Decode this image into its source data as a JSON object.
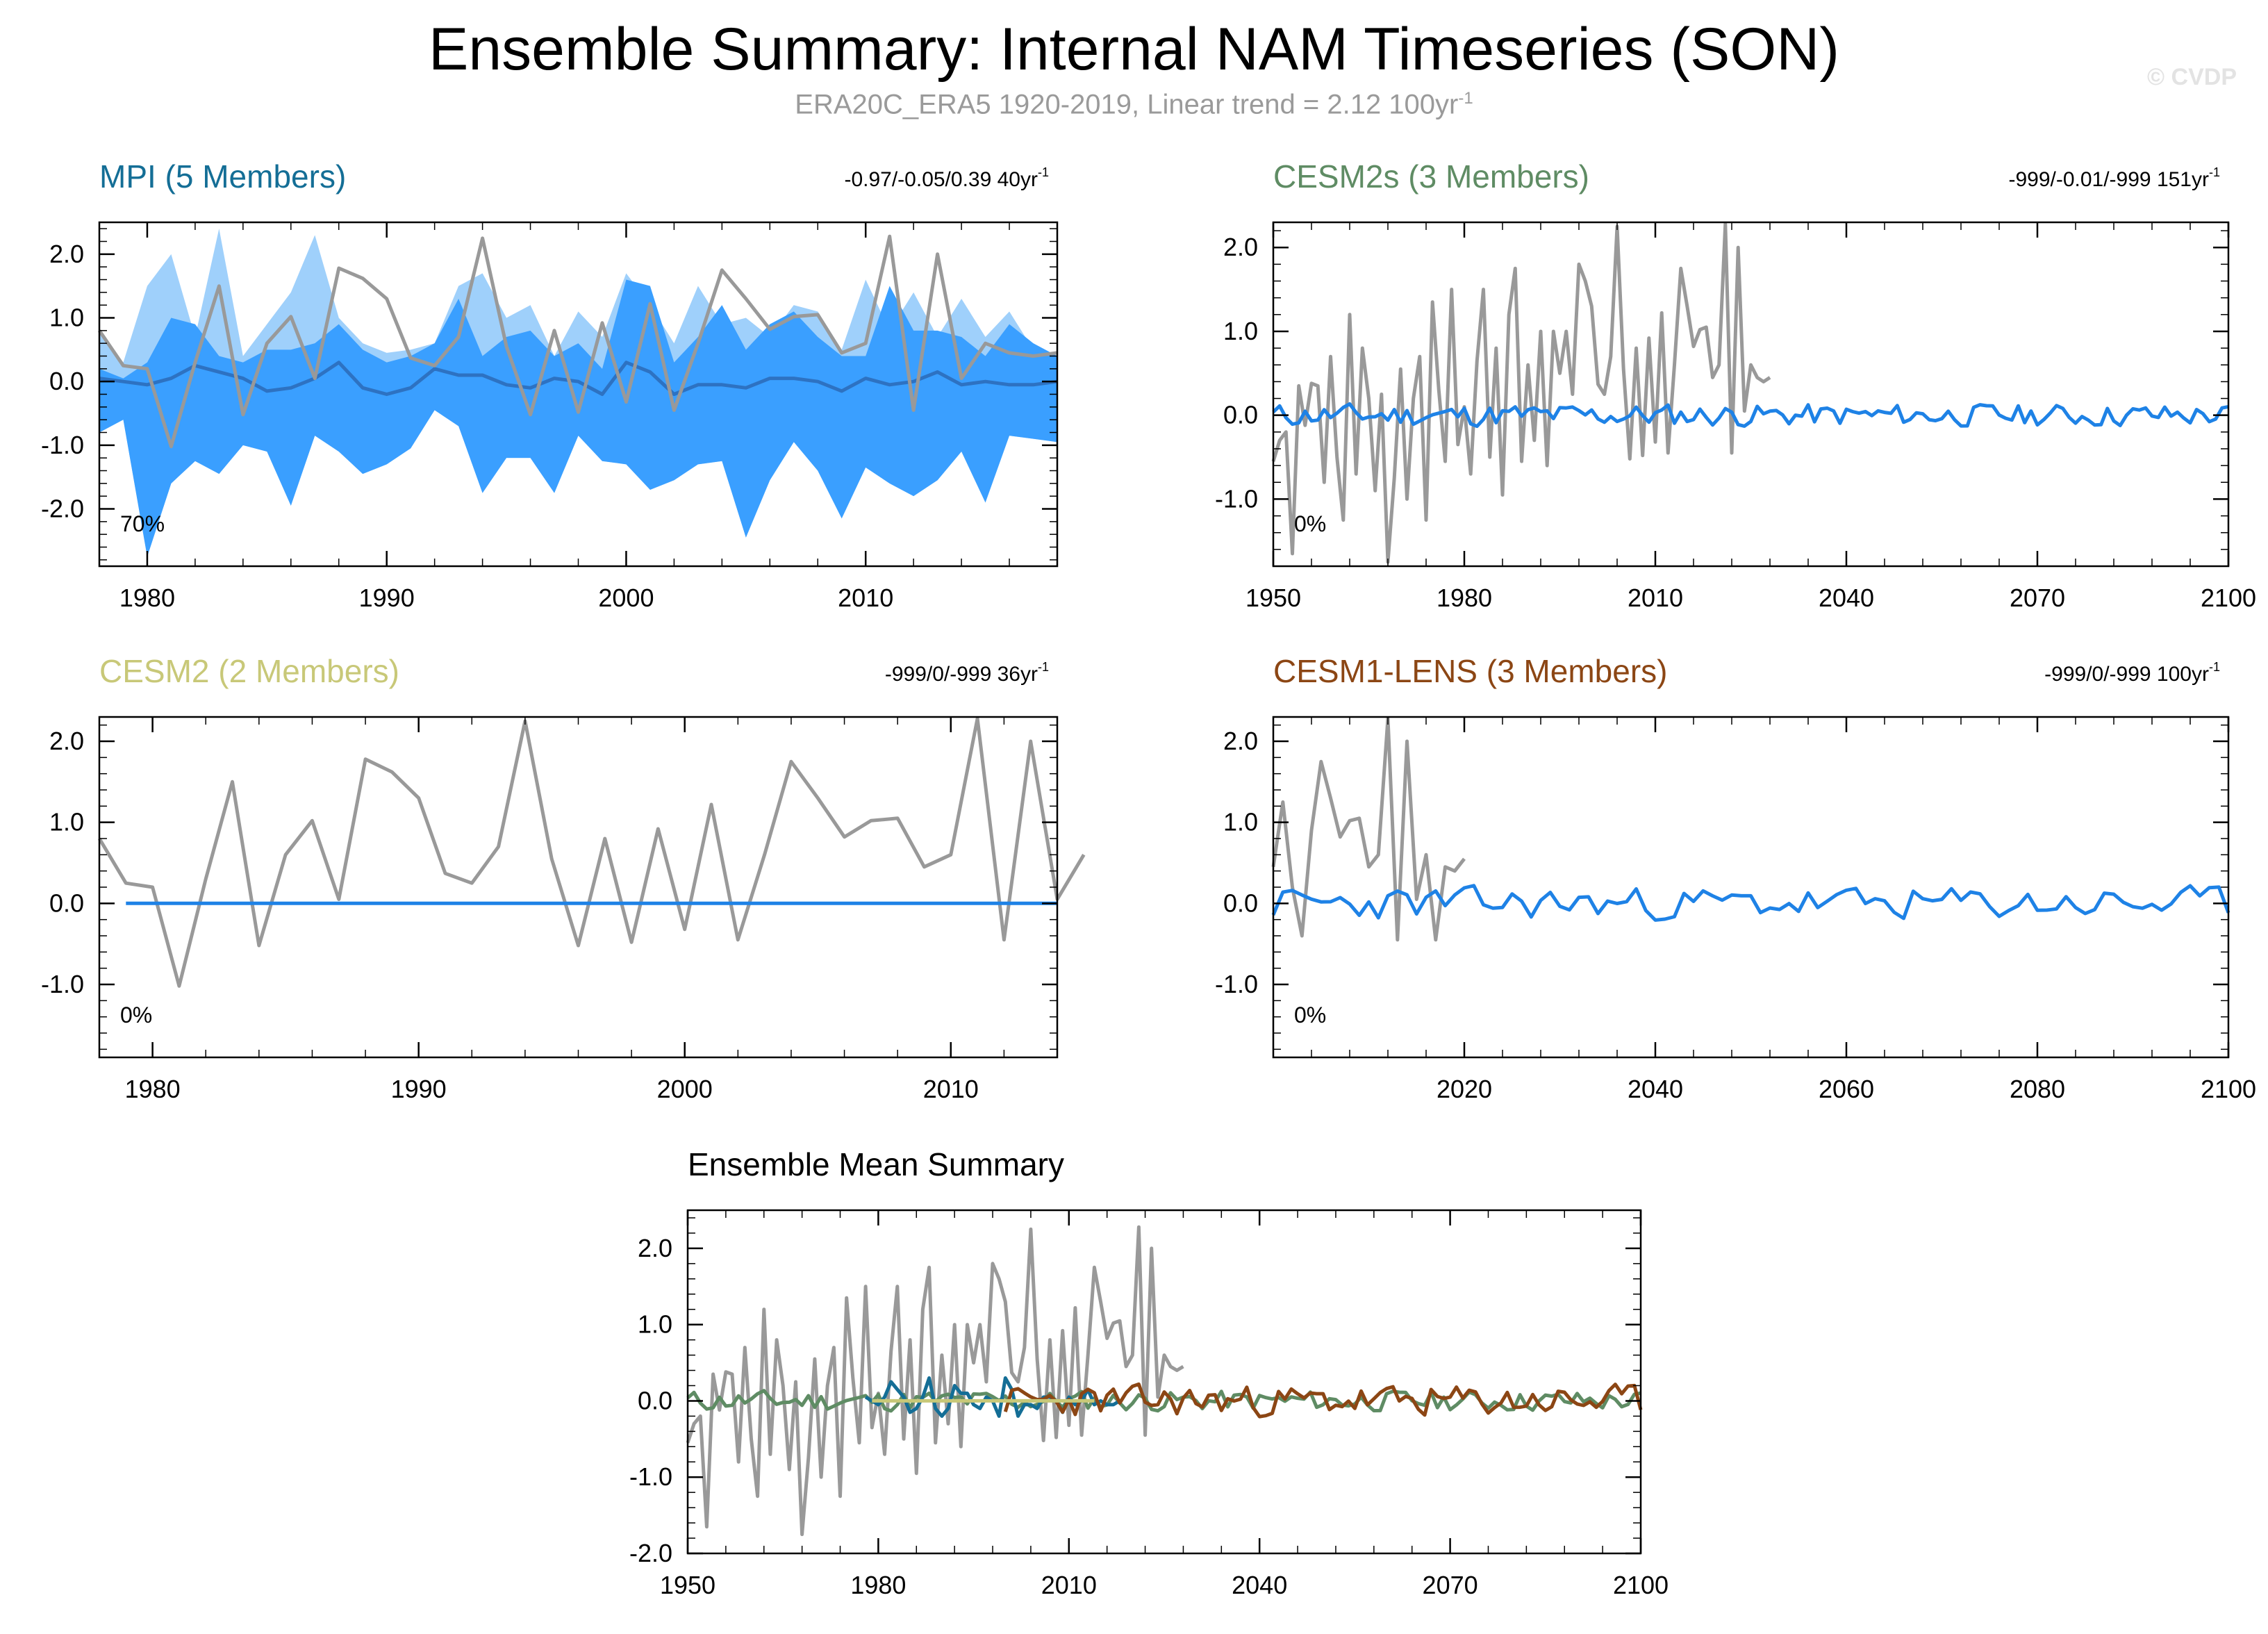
{
  "page": {
    "title": "Ensemble Summary: Internal NAM Timeseries (SON)",
    "subtitle": "ERA20C_ERA5 1920-2019, Linear trend = 2.12 100yr",
    "subtitle_sup": "-1",
    "watermark": "© CVDP"
  },
  "colors": {
    "obs": "#999999",
    "mean_line": "#1e82e6",
    "spread_outer": "#9fd0fb",
    "spread_inner": "#3a9fff",
    "mpi_dark": "#2d72c2",
    "mpi": "#146e96",
    "cesm2s": "#5f8c64",
    "cesm2": "#c8c878",
    "cesm1": "#8c4614"
  },
  "panels": [
    {
      "title": "MPI (5 Members)",
      "stats": "-0.97/-0.05/0.39 40yr",
      "stats_sup": "-1",
      "percent": "70%",
      "xticks": [
        "1980",
        "1990",
        "2000",
        "2010"
      ],
      "yticks": [
        "2.0",
        "1.0",
        "0.0",
        "-1.0",
        "-2.0"
      ]
    },
    {
      "title": "CESM2s (3 Members)",
      "stats": "-999/-0.01/-999 151yr",
      "stats_sup": "-1",
      "percent": "0%",
      "xticks": [
        "1950",
        "1980",
        "2010",
        "2040",
        "2070",
        "2100"
      ],
      "yticks": [
        "2.0",
        "1.0",
        "0.0",
        "-1.0"
      ]
    },
    {
      "title": "CESM2 (2 Members)",
      "stats": "-999/0/-999 36yr",
      "stats_sup": "-1",
      "percent": "0%",
      "xticks": [
        "1980",
        "1990",
        "2000",
        "2010"
      ],
      "yticks": [
        "2.0",
        "1.0",
        "0.0",
        "-1.0"
      ]
    },
    {
      "title": "CESM1-LENS (3 Members)",
      "stats": "-999/0/-999 100yr",
      "stats_sup": "-1",
      "percent": "0%",
      "xticks": [
        "2020",
        "2040",
        "2060",
        "2080",
        "2100"
      ],
      "yticks": [
        "2.0",
        "1.0",
        "0.0",
        "-1.0"
      ]
    },
    {
      "title": "Ensemble Mean Summary",
      "stats": "",
      "stats_sup": "",
      "percent": "",
      "xticks": [
        "1950",
        "1980",
        "2010",
        "2040",
        "2070",
        "2100"
      ],
      "yticks": [
        "2.0",
        "1.0",
        "0.0",
        "-1.0",
        "-2.0"
      ]
    }
  ],
  "chart_data": [
    {
      "type": "line",
      "title": "MPI (5 Members)",
      "xlim": [
        1978,
        2018
      ],
      "ylim": [
        -2.9,
        2.5
      ],
      "x_start": 1978,
      "obs": [
        0.8,
        0.25,
        0.2,
        -1.02,
        0.3,
        1.5,
        -0.52,
        0.6,
        1.02,
        0.05,
        1.78,
        1.62,
        1.3,
        0.37,
        0.25,
        0.7,
        2.25,
        0.55,
        -0.52,
        0.8,
        -0.48,
        0.92,
        -0.32,
        1.22,
        -0.45,
        0.6,
        1.75,
        1.3,
        0.82,
        1.02,
        1.05,
        0.45,
        0.6,
        2.28,
        -0.45,
        2.0,
        0.05,
        0.6,
        0.45,
        0.4,
        0.45
      ],
      "ens_mean": [
        0.05,
        0.0,
        -0.05,
        0.05,
        0.25,
        0.15,
        0.05,
        -0.15,
        -0.1,
        0.05,
        0.3,
        -0.1,
        -0.2,
        -0.1,
        0.2,
        0.1,
        0.1,
        -0.05,
        -0.1,
        0.05,
        0.0,
        -0.2,
        0.3,
        0.15,
        -0.2,
        -0.05,
        -0.05,
        -0.1,
        0.05,
        0.05,
        0.0,
        -0.15,
        0.05,
        -0.05,
        0.0,
        0.15,
        -0.05,
        0.0,
        -0.05,
        -0.05,
        0.0
      ],
      "inner_max": [
        0.2,
        0.05,
        0.3,
        1.0,
        0.9,
        0.4,
        0.3,
        0.5,
        0.5,
        0.6,
        0.9,
        0.5,
        0.3,
        0.4,
        0.6,
        1.3,
        0.4,
        0.7,
        0.8,
        0.4,
        0.6,
        0.2,
        1.6,
        1.5,
        0.3,
        0.7,
        1.2,
        0.5,
        0.9,
        1.1,
        0.7,
        0.4,
        0.4,
        1.5,
        0.8,
        0.8,
        0.7,
        0.4,
        0.9,
        0.6,
        0.4
      ],
      "inner_min": [
        -0.8,
        -0.6,
        -2.75,
        -1.6,
        -1.25,
        -1.45,
        -1.0,
        -1.1,
        -1.95,
        -0.85,
        -1.1,
        -1.45,
        -1.3,
        -1.05,
        -0.45,
        -0.7,
        -1.75,
        -1.2,
        -1.2,
        -1.75,
        -0.85,
        -1.25,
        -1.3,
        -1.7,
        -1.55,
        -1.3,
        -1.25,
        -2.45,
        -1.55,
        -0.95,
        -1.4,
        -2.15,
        -1.35,
        -1.6,
        -1.8,
        -1.55,
        -1.1,
        -1.9,
        -0.85,
        -0.9,
        -0.95
      ],
      "outer_max": [
        0.8,
        0.3,
        1.5,
        2.0,
        0.7,
        2.4,
        0.4,
        0.9,
        1.4,
        2.3,
        1.0,
        0.6,
        0.45,
        0.5,
        0.6,
        1.5,
        1.7,
        1.0,
        1.2,
        0.4,
        1.1,
        0.7,
        1.7,
        1.2,
        0.6,
        1.5,
        0.9,
        1.0,
        0.7,
        1.2,
        1.1,
        0.5,
        1.6,
        0.8,
        1.4,
        0.7,
        1.3,
        0.7,
        1.1,
        0.5,
        0.4
      ],
      "label_percent": "70%"
    },
    {
      "type": "line",
      "title": "CESM2s (3 Members)",
      "xlim": [
        1950,
        2100
      ],
      "ylim": [
        -1.8,
        2.3
      ],
      "x_start": 1950,
      "obs": [
        -0.55,
        -0.3,
        -0.2,
        -1.65,
        0.35,
        -0.12,
        0.38,
        0.35,
        -0.8,
        0.7,
        -0.5,
        -1.25,
        1.2,
        -0.7,
        0.8,
        0.2,
        -0.9,
        0.25,
        -1.75,
        -0.75,
        0.55,
        -1.0,
        0.2,
        0.7,
        -1.25,
        1.35,
        0.3,
        -0.55,
        1.5,
        -0.35,
        0.1,
        -0.7,
        0.65,
        1.5,
        -0.5,
        0.8,
        -0.95,
        1.2,
        1.75,
        -0.55,
        0.6,
        -0.3,
        1.0,
        -0.6,
        1.0,
        0.5,
        1.0,
        0.25,
        1.8,
        1.6,
        1.3,
        0.37,
        0.25,
        0.7,
        2.25,
        0.55,
        -0.52,
        0.8,
        -0.48,
        0.92,
        -0.32,
        1.22,
        -0.45,
        0.6,
        1.75,
        1.3,
        0.82,
        1.02,
        1.05,
        0.45,
        0.6,
        2.28,
        -0.45,
        2.0,
        0.05,
        0.6,
        0.45,
        0.4,
        0.45
      ],
      "ens_mean_seed": 11,
      "ens_mean_amp": 0.08,
      "label_percent": "0%"
    },
    {
      "type": "line",
      "title": "CESM2 (2 Members)",
      "xlim": [
        1978,
        2014
      ],
      "ylim": [
        -1.9,
        2.3
      ],
      "x_start": 1978,
      "obs": [
        0.8,
        0.25,
        0.2,
        -1.02,
        0.3,
        1.5,
        -0.52,
        0.6,
        1.02,
        0.05,
        1.78,
        1.62,
        1.3,
        0.37,
        0.25,
        0.7,
        2.25,
        0.55,
        -0.52,
        0.8,
        -0.48,
        0.92,
        -0.32,
        1.22,
        -0.45,
        0.6,
        1.75,
        1.3,
        0.82,
        1.02,
        1.05,
        0.45,
        0.6,
        2.28,
        -0.45,
        2.0,
        0.05,
        0.6
      ],
      "ens_mean_x": [
        1979,
        2014
      ],
      "ens_mean": [
        0.0,
        0.0
      ],
      "label_percent": "0%"
    },
    {
      "type": "line",
      "title": "CESM1-LENS (3 Members)",
      "xlim": [
        2000,
        2100
      ],
      "ylim": [
        -1.9,
        2.3
      ],
      "x_start": 2000,
      "obs": [
        0.45,
        1.25,
        0.2,
        -0.4,
        0.9,
        1.75,
        1.3,
        0.82,
        1.02,
        1.05,
        0.45,
        0.6,
        2.28,
        -0.45,
        2.0,
        0.05,
        0.6,
        -0.45,
        0.45,
        0.4,
        0.55
      ],
      "ens_mean_seed": 23,
      "ens_mean_amp": 0.12,
      "label_percent": "0%"
    },
    {
      "type": "line",
      "title": "Ensemble Mean Summary",
      "xlim": [
        1950,
        2100
      ],
      "ylim": [
        -2.0,
        2.5
      ],
      "series": [
        {
          "color_key": "obs"
        },
        {
          "color_key": "cesm2s"
        },
        {
          "color_key": "mpi"
        },
        {
          "color_key": "cesm1"
        },
        {
          "color_key": "cesm2"
        }
      ]
    }
  ]
}
